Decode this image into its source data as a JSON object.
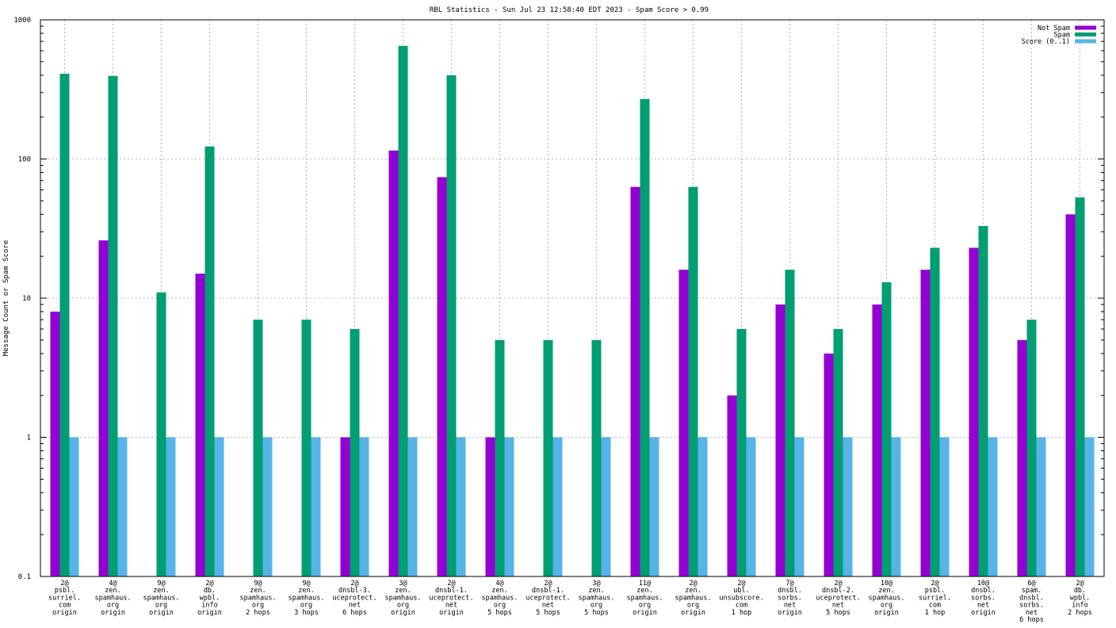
{
  "chart_data": {
    "type": "bar",
    "title": "RBL Statistics - Sun Jul 23 12:58:40 EDT 2023 - Spam Score > 0.99",
    "ylabel": "Message Count or Spam Score",
    "xlabel": "",
    "yscale": "log",
    "ylim": [
      0.1,
      1000
    ],
    "ytick_labels": [
      "0.1",
      "1",
      "10",
      "100",
      "1000"
    ],
    "grid": true,
    "legend_position": "top-right",
    "categories": [
      [
        "2@",
        "psbl.",
        "surriel.",
        "com",
        "origin"
      ],
      [
        "4@",
        "zen.",
        "spamhaus.",
        "org",
        "origin"
      ],
      [
        "9@",
        "zen.",
        "spamhaus.",
        "org",
        "origin"
      ],
      [
        "2@",
        "db.",
        "wpbl.",
        "info",
        "origin"
      ],
      [
        "9@",
        "zen.",
        "spamhaus.",
        "org",
        "2 hops"
      ],
      [
        "9@",
        "zen.",
        "spamhaus.",
        "org",
        "3 hops"
      ],
      [
        "2@",
        "dnsbl-3.",
        "uceprotect.",
        "net",
        "6 hops"
      ],
      [
        "3@",
        "zen.",
        "spamhaus.",
        "org",
        "origin"
      ],
      [
        "2@",
        "dnsbl-1.",
        "uceprotect.",
        "net",
        "origin"
      ],
      [
        "4@",
        "zen.",
        "spamhaus.",
        "org",
        "5 hops"
      ],
      [
        "2@",
        "dnsbl-1.",
        "uceprotect.",
        "net",
        "5 hops"
      ],
      [
        "3@",
        "zen.",
        "spamhaus.",
        "org",
        "5 hops"
      ],
      [
        "11@",
        "zen.",
        "spamhaus.",
        "org",
        "origin"
      ],
      [
        "2@",
        "zen.",
        "spamhaus.",
        "org",
        "origin"
      ],
      [
        "2@",
        "ubl.",
        "unsubscore.",
        "com",
        "1 hop"
      ],
      [
        "7@",
        "dnsbl.",
        "sorbs.",
        "net",
        "origin"
      ],
      [
        "2@",
        "dnsbl-2.",
        "uceprotect.",
        "net",
        "5 hops"
      ],
      [
        "10@",
        "zen.",
        "spamhaus.",
        "org",
        "origin"
      ],
      [
        "2@",
        "psbl.",
        "surriel.",
        "com",
        "1 hop"
      ],
      [
        "10@",
        "dnsbl.",
        "sorbs.",
        "net",
        "origin"
      ],
      [
        "6@",
        "spam.",
        "dnsbl.",
        "sorbs.",
        "net",
        "6 hops"
      ],
      [
        "2@",
        "db.",
        "wpbl.",
        "info",
        "2 hops"
      ]
    ],
    "series": [
      {
        "name": "Not Spam",
        "color": "#9400d3",
        "values": [
          8,
          26,
          null,
          15,
          null,
          null,
          1,
          115,
          74,
          1,
          null,
          null,
          63,
          16,
          2,
          9,
          4,
          9,
          16,
          23,
          5,
          40
        ]
      },
      {
        "name": "Spam",
        "color": "#009e73",
        "values": [
          410,
          395,
          11,
          123,
          7,
          7,
          6,
          650,
          400,
          5,
          5,
          5,
          270,
          63,
          6,
          16,
          6,
          13,
          23,
          33,
          7,
          53
        ]
      },
      {
        "name": "Score (0..1)",
        "color": "#56b4e9",
        "values": [
          1,
          1,
          1,
          1,
          1,
          1,
          1,
          1,
          1,
          1,
          1,
          1,
          1,
          1,
          1,
          1,
          1,
          1,
          1,
          1,
          1,
          1
        ]
      }
    ]
  }
}
